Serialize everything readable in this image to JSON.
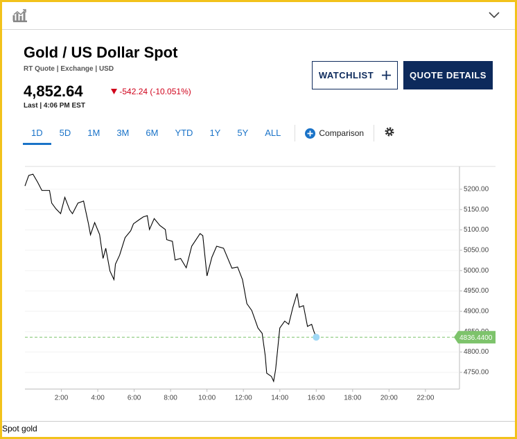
{
  "quote": {
    "title": "Gold / US Dollar Spot",
    "meta": "RT Quote | Exchange | USD",
    "price": "4,852.64",
    "change": "-542.24 (-10.051%)",
    "last": "Last | 4:06 PM EST"
  },
  "buttons": {
    "watchlist": "WATCHLIST",
    "quote_details": "QUOTE DETAILS"
  },
  "tabs": [
    "1D",
    "5D",
    "1M",
    "3M",
    "6M",
    "YTD",
    "1Y",
    "5Y",
    "ALL"
  ],
  "comparison": "Comparison",
  "footer": "Spot gold",
  "chart_data": {
    "type": "line",
    "color": "#000000",
    "x": [
      0,
      0.21,
      0.44,
      0.7,
      0.93,
      1.35,
      1.47,
      1.7,
      1.96,
      2.19,
      2.46,
      2.61,
      2.91,
      3.22,
      3.49,
      3.6,
      3.83,
      4.1,
      4.29,
      4.44,
      4.67,
      4.89,
      4.97,
      5.2,
      5.5,
      5.81,
      5.96,
      6.27,
      6.5,
      6.72,
      6.84,
      7.1,
      7.41,
      7.71,
      7.79,
      8.1,
      8.25,
      8.55,
      8.86,
      9.16,
      9.62,
      9.77,
      10.0,
      10.27,
      10.53,
      10.91,
      11.37,
      11.68,
      11.95,
      12.19,
      12.46,
      12.8,
      13.03,
      13.2,
      13.28,
      13.54,
      13.66,
      13.77,
      14.0,
      14.27,
      14.49,
      14.72,
      14.95,
      15.07,
      15.3,
      15.52,
      15.75,
      15.87,
      16.0
    ],
    "values": [
      5208,
      5234,
      5237,
      5217,
      5197,
      5197,
      5166,
      5152,
      5140,
      5180,
      5149,
      5140,
      5166,
      5171,
      5115,
      5088,
      5118,
      5089,
      5030,
      5055,
      4999,
      4978,
      5016,
      5038,
      5081,
      5098,
      5115,
      5125,
      5132,
      5135,
      5101,
      5128,
      5111,
      5101,
      5076,
      5072,
      5026,
      5030,
      5007,
      5060,
      5091,
      5086,
      4987,
      5033,
      5060,
      5055,
      5006,
      5009,
      4978,
      4919,
      4902,
      4859,
      4846,
      4791,
      4748,
      4740,
      4728,
      4757,
      4859,
      4876,
      4868,
      4910,
      4944,
      4910,
      4914,
      4863,
      4868,
      4851,
      4836.44
    ],
    "xlim": [
      0,
      23.87
    ],
    "xticks": [
      {
        "value": 2,
        "label": "2:00"
      },
      {
        "value": 4,
        "label": "4:00"
      },
      {
        "value": 6,
        "label": "6:00"
      },
      {
        "value": 8,
        "label": "8:00"
      },
      {
        "value": 10,
        "label": "10:00"
      },
      {
        "value": 12,
        "label": "12:00"
      },
      {
        "value": 14,
        "label": "14:00"
      },
      {
        "value": 16,
        "label": "16:00"
      },
      {
        "value": 18,
        "label": "18:00"
      },
      {
        "value": 20,
        "label": "20:00"
      },
      {
        "value": 22,
        "label": "22:00"
      }
    ],
    "ylim": [
      4709,
      5256
    ],
    "yticks": [
      {
        "value": 4750,
        "label": "4750.00"
      },
      {
        "value": 4800,
        "label": "4800.00"
      },
      {
        "value": 4850,
        "label": "4850.00"
      },
      {
        "value": 4900,
        "label": "4900.00"
      },
      {
        "value": 4950,
        "label": "4950.00"
      },
      {
        "value": 5000,
        "label": "5000.00"
      },
      {
        "value": 5050,
        "label": "5050.00"
      },
      {
        "value": 5100,
        "label": "5100.00"
      },
      {
        "value": 5150,
        "label": "5150.00"
      },
      {
        "value": 5200,
        "label": "5200.00"
      }
    ],
    "grid": true,
    "reference_line": {
      "value": 4836.44,
      "label": "4836.4400",
      "color": "#7dc36b"
    }
  }
}
